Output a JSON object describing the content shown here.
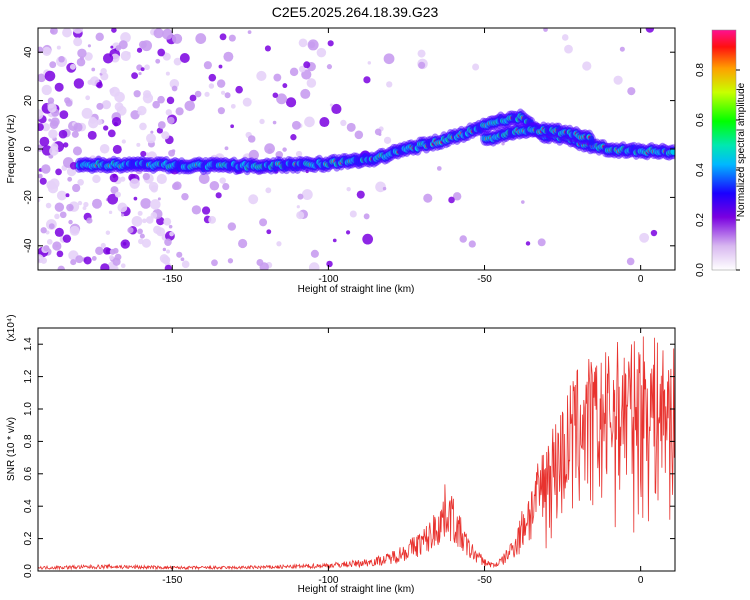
{
  "title": "C2E5.2025.264.18.39.G23",
  "chart_data": [
    {
      "type": "heatmap",
      "xlabel": "Height of straight line (km)",
      "ylabel": "Frequency (Hz)",
      "xlim": [
        -193,
        11
      ],
      "ylim": [
        -50,
        50
      ],
      "xticks": [
        -150,
        -100,
        -50,
        0
      ],
      "yticks": [
        -40,
        -20,
        0,
        20,
        40
      ],
      "colorbar": {
        "label": "Normalized spectral amplitude",
        "range": [
          0.0,
          0.96
        ],
        "ticks": [
          0.0,
          0.2,
          0.4,
          0.6,
          0.8
        ]
      },
      "ridge": [
        {
          "x": -180,
          "y": -6.5
        },
        {
          "x": -160,
          "y": -6.5
        },
        {
          "x": -140,
          "y": -7
        },
        {
          "x": -120,
          "y": -7
        },
        {
          "x": -100,
          "y": -6
        },
        {
          "x": -85,
          "y": -4
        },
        {
          "x": -75,
          "y": 0
        },
        {
          "x": -65,
          "y": 3
        },
        {
          "x": -55,
          "y": 7
        },
        {
          "x": -45,
          "y": 12
        },
        {
          "x": -38,
          "y": 13
        },
        {
          "x": -32,
          "y": 6
        },
        {
          "x": -25,
          "y": 5
        },
        {
          "x": -18,
          "y": 2
        },
        {
          "x": -10,
          "y": 0
        },
        {
          "x": 0,
          "y": -1
        },
        {
          "x": 11,
          "y": -1
        }
      ],
      "ridge_branch": [
        {
          "x": -50,
          "y": 4
        },
        {
          "x": -40,
          "y": 7
        },
        {
          "x": -30,
          "y": 8
        },
        {
          "x": -22,
          "y": 6
        },
        {
          "x": -15,
          "y": 4
        }
      ]
    },
    {
      "type": "line",
      "xlabel": "Height of straight line (km)",
      "ylabel": "SNR (10 * v/v)",
      "yunit": "(x10⁴)",
      "xlim": [
        -193,
        11
      ],
      "ylim": [
        0.0,
        1.5
      ],
      "xticks": [
        -150,
        -100,
        -50,
        0
      ],
      "yticks": [
        0.0,
        0.2,
        0.4,
        0.6,
        0.8,
        1.0,
        1.2,
        1.4
      ],
      "color": "#e8322e",
      "envelope": {
        "x": [
          -193,
          -170,
          -150,
          -130,
          -110,
          -100,
          -90,
          -82,
          -75,
          -68,
          -64,
          -62,
          -58,
          -55,
          -50,
          -47,
          -44,
          -40,
          -37,
          -34,
          -30,
          -26,
          -22,
          -18,
          -14,
          -10,
          -6,
          -2,
          0,
          4,
          8,
          11
        ],
        "y": [
          0.03,
          0.04,
          0.03,
          0.03,
          0.04,
          0.05,
          0.07,
          0.1,
          0.18,
          0.3,
          0.45,
          0.58,
          0.35,
          0.2,
          0.08,
          0.05,
          0.1,
          0.25,
          0.45,
          0.6,
          0.85,
          1.0,
          1.2,
          1.35,
          1.3,
          1.38,
          1.45,
          1.42,
          1.48,
          1.45,
          1.4,
          1.38
        ]
      }
    }
  ]
}
